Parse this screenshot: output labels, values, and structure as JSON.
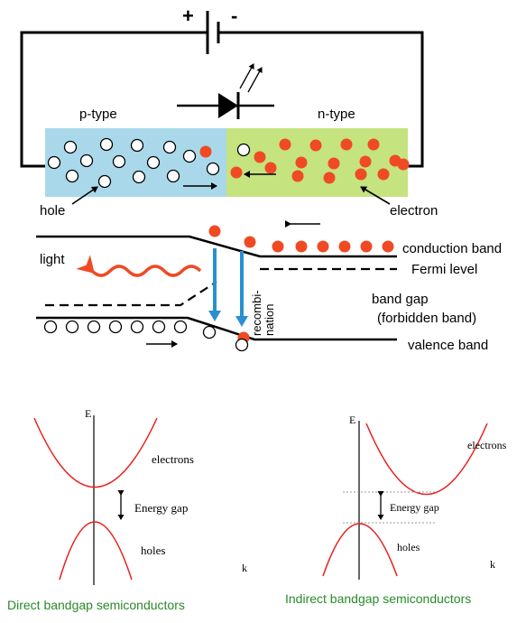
{
  "battery": {
    "plus": "+",
    "minus": "-"
  },
  "junction": {
    "p_label": "p-type",
    "n_label": "n-type",
    "hole_label": "hole",
    "electron_label": "electron"
  },
  "band_diagram": {
    "conduction": "conduction band",
    "fermi": "Fermi level",
    "gap_line1": "band gap",
    "gap_line2": "(forbidden band)",
    "valence": "valence band",
    "light": "light",
    "recomb_line1": "recombi-",
    "recomb_line2": "nation"
  },
  "direct": {
    "axis_e": "E",
    "axis_k": "k",
    "electrons": "electrons",
    "gap": "Energy gap",
    "holes": "holes",
    "caption": "Direct bandgap semiconductors"
  },
  "indirect": {
    "axis_e": "E",
    "axis_k": "k",
    "electrons": "electrons",
    "gap": "Energy gap",
    "holes": "holes",
    "caption": "Indirect bandgap semiconductors"
  },
  "colors": {
    "p_region": "#a8d8ea",
    "n_region": "#c5e37e",
    "electron": "#f04a24",
    "photon_arrow": "#2a8fd0",
    "light_wave": "#f04a24",
    "curve": "#e82020",
    "caption": "#2a8a2a"
  }
}
